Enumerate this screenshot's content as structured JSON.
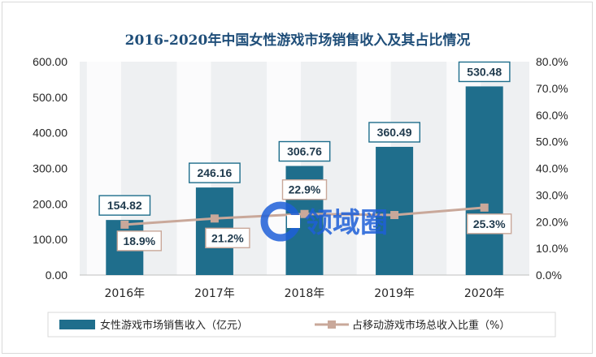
{
  "chart_data": {
    "type": "bar",
    "title": "2016-2020年中国女性游戏市场销售收入及其占比情况",
    "categories": [
      "2016年",
      "2017年",
      "2018年",
      "2019年",
      "2020年"
    ],
    "series": [
      {
        "name": "女性游戏市场销售收入（亿元）",
        "type": "bar",
        "axis": "left",
        "values": [
          154.82,
          246.16,
          306.76,
          360.49,
          530.48
        ],
        "labels": [
          "154.82",
          "246.16",
          "306.76",
          "360.49",
          "530.48"
        ],
        "color": "#1f6e8c"
      },
      {
        "name": "占移动游戏市场总收入比重（%）",
        "type": "line",
        "axis": "right",
        "values": [
          18.9,
          21.2,
          22.9,
          22.5,
          25.3
        ],
        "labels": [
          "18.9%",
          "21.2%",
          "22.9%",
          "",
          "25.3%"
        ],
        "color": "#c9a89a"
      }
    ],
    "y_left": {
      "ylim": [
        0,
        600
      ],
      "ticks": [
        "0.00",
        "100.00",
        "200.00",
        "300.00",
        "400.00",
        "500.00",
        "600.00"
      ]
    },
    "y_right": {
      "ylim": [
        0,
        80
      ],
      "ticks": [
        "0.0%",
        "10.0%",
        "20.0%",
        "30.0%",
        "40.0%",
        "50.0%",
        "60.0%",
        "70.0%",
        "80.0%"
      ]
    },
    "grid": false,
    "legend": "bottom"
  },
  "watermark": {
    "text": "领域圈",
    "icon": "logo-c-icon"
  },
  "colors": {
    "title": "#1f4e79",
    "plot_bg": "#eef0f2",
    "stripe": "#ffffff",
    "bar": "#1f6e8c",
    "line": "#c9a89a"
  }
}
